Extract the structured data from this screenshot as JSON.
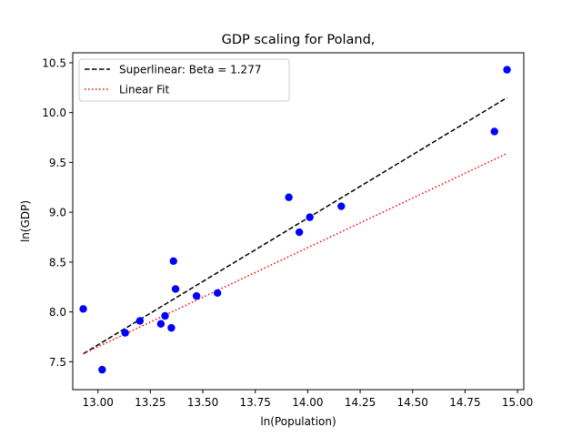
{
  "chart_data": {
    "type": "scatter",
    "title": "GDP scaling for Poland,",
    "xlabel": "ln(Population)",
    "ylabel": "ln(GDP)",
    "xlim": [
      12.88,
      15.03
    ],
    "ylim": [
      7.22,
      10.6
    ],
    "xticks": [
      13.0,
      13.25,
      13.5,
      13.75,
      14.0,
      14.25,
      14.5,
      14.75,
      15.0
    ],
    "xtick_labels": [
      "13.00",
      "13.25",
      "13.50",
      "13.75",
      "14.00",
      "14.25",
      "14.50",
      "14.75",
      "15.00"
    ],
    "yticks": [
      7.5,
      8.0,
      8.5,
      9.0,
      9.5,
      10.0,
      10.5
    ],
    "ytick_labels": [
      "7.5",
      "8.0",
      "8.5",
      "9.0",
      "9.5",
      "10.0",
      "10.5"
    ],
    "grid": false,
    "legend_position": "top-left",
    "colors": {
      "points": "#0000ff",
      "superlinear": "#000000",
      "linear": "#ff0000"
    },
    "points": {
      "x": [
        12.93,
        13.02,
        13.13,
        13.2,
        13.3,
        13.32,
        13.35,
        13.36,
        13.37,
        13.47,
        13.57,
        13.91,
        13.96,
        14.01,
        14.16,
        14.89,
        14.95
      ],
      "y": [
        8.03,
        7.42,
        7.79,
        7.91,
        7.88,
        7.96,
        7.84,
        8.51,
        8.23,
        8.16,
        8.19,
        9.15,
        8.8,
        8.95,
        9.06,
        9.81,
        10.43
      ]
    },
    "series": [
      {
        "name": "Superlinear: Beta = 1.277",
        "style": "dashed",
        "x": [
          12.93,
          14.95
        ],
        "y": [
          7.58,
          10.15
        ]
      },
      {
        "name": "Linear Fit",
        "style": "dotted",
        "x": [
          12.93,
          14.95
        ],
        "y": [
          7.58,
          9.59
        ]
      }
    ]
  }
}
